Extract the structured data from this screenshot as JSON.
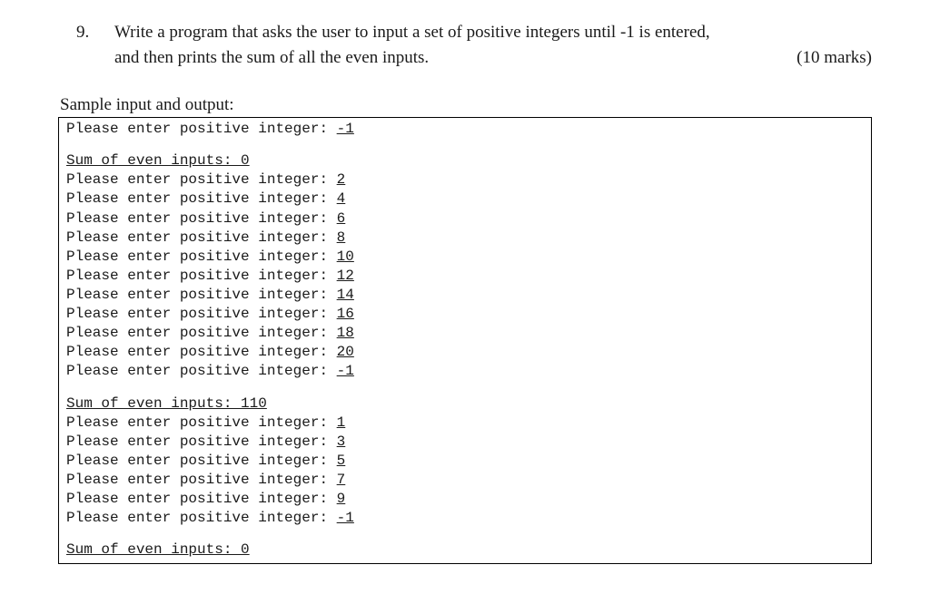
{
  "question": {
    "number": "9.",
    "text_line1": "Write a program that asks the user to input a set of positive integers until -1 is entered,",
    "text_line2_left": "and then prints the sum of all the even inputs.",
    "marks": "(10 marks)"
  },
  "sample_heading": "Sample input and output:",
  "prompt_prefix": "Please enter positive integer: ",
  "sum_prefix": "Sum of even inputs: ",
  "runs": [
    {
      "inputs": [
        "-1"
      ],
      "sum": "0"
    },
    {
      "inputs": [
        "2",
        "4",
        "6",
        "8",
        "10",
        "12",
        "14",
        "16",
        "18",
        "20",
        "-1"
      ],
      "sum": "110"
    },
    {
      "inputs": [
        "1",
        "3",
        "5",
        "7",
        "9",
        "-1"
      ],
      "sum": "0"
    }
  ],
  "colors": {
    "text": "#1a1a1a",
    "border": "#000000",
    "background": "#ffffff"
  },
  "fonts": {
    "body_family": "Times New Roman",
    "mono_family": "Courier New",
    "body_size_pt": 14,
    "mono_size_pt": 12
  }
}
